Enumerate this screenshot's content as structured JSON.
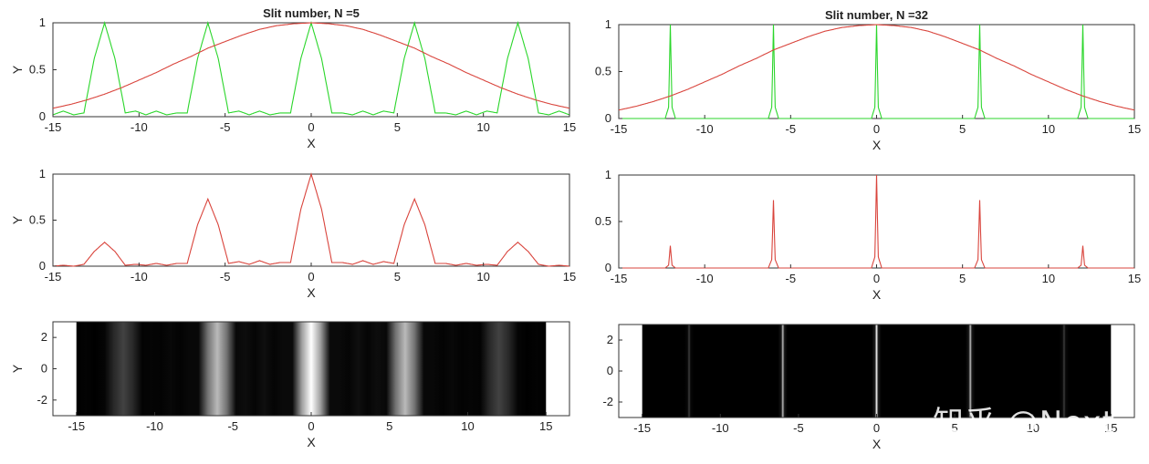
{
  "chart_data": [
    {
      "type": "line",
      "title": "Slit number, N =5",
      "xlabel": "X",
      "ylabel": "Y",
      "xlim": [
        -15,
        15
      ],
      "ylim": [
        0,
        1
      ],
      "xticks": [
        "-15",
        "-10",
        "-5",
        "0",
        "5",
        "10",
        "15"
      ],
      "yticks": [
        "0",
        "0.5",
        "1"
      ],
      "grid": false,
      "series": [
        {
          "color": "#2bd62b",
          "x": [
            -15,
            -14.4,
            -13.8,
            -13.2,
            -12.6,
            -12.0,
            -11.4,
            -10.8,
            -10.2,
            -9.6,
            -9.0,
            -8.4,
            -7.8,
            -7.2,
            -6.6,
            -6.0,
            -5.4,
            -4.8,
            -4.2,
            -3.6,
            -3.0,
            -2.4,
            -1.8,
            -1.2,
            -0.6,
            0.0,
            0.6,
            1.2,
            1.8,
            2.4,
            3.0,
            3.6,
            4.2,
            4.8,
            5.4,
            6.0,
            6.6,
            7.2,
            7.8,
            8.4,
            9.0,
            9.6,
            10.2,
            10.8,
            11.4,
            12.0,
            12.6,
            13.2,
            13.8,
            14.4,
            15
          ],
          "y": [
            0.02,
            0.06,
            0.02,
            0.04,
            0.62,
            1.0,
            0.62,
            0.04,
            0.06,
            0.02,
            0.06,
            0.02,
            0.04,
            0.04,
            0.62,
            1.0,
            0.62,
            0.04,
            0.06,
            0.02,
            0.06,
            0.02,
            0.04,
            0.04,
            0.62,
            1.0,
            0.62,
            0.04,
            0.04,
            0.02,
            0.06,
            0.02,
            0.06,
            0.04,
            0.62,
            1.0,
            0.62,
            0.04,
            0.04,
            0.02,
            0.06,
            0.02,
            0.06,
            0.04,
            0.62,
            1.0,
            0.62,
            0.04,
            0.02,
            0.06,
            0.02
          ]
        },
        {
          "color": "#d9443c",
          "x": [
            -15,
            -14,
            -13,
            -12,
            -11,
            -10,
            -9,
            -8,
            -7,
            -6,
            -5,
            -4,
            -3,
            -2,
            -1,
            0,
            1,
            2,
            3,
            4,
            5,
            6,
            7,
            8,
            9,
            10,
            11,
            12,
            13,
            14,
            15
          ],
          "y": [
            0.09,
            0.13,
            0.18,
            0.24,
            0.31,
            0.39,
            0.47,
            0.56,
            0.64,
            0.73,
            0.8,
            0.87,
            0.93,
            0.97,
            0.99,
            1.0,
            0.99,
            0.97,
            0.93,
            0.87,
            0.8,
            0.73,
            0.64,
            0.56,
            0.47,
            0.39,
            0.31,
            0.24,
            0.18,
            0.13,
            0.09
          ]
        }
      ]
    },
    {
      "type": "line",
      "title": "Slit number, N =32",
      "xlabel": "X",
      "ylabel": "",
      "xlim": [
        -15,
        15
      ],
      "ylim": [
        0,
        1
      ],
      "xticks": [
        "-15",
        "-10",
        "-5",
        "0",
        "5",
        "10",
        "15"
      ],
      "yticks": [
        "0",
        "0.5",
        "1"
      ],
      "grid": false,
      "series": [
        {
          "color": "#2bd62b",
          "x": [
            -15,
            -12.3,
            -12.1,
            -12.0,
            -11.9,
            -11.7,
            -6.3,
            -6.1,
            -6.0,
            -5.9,
            -5.7,
            -0.3,
            -0.1,
            0.0,
            0.1,
            0.3,
            5.7,
            5.9,
            6.0,
            6.1,
            6.3,
            11.7,
            11.9,
            12.0,
            12.1,
            12.3,
            15
          ],
          "y": [
            0.0,
            0.0,
            0.12,
            1.0,
            0.12,
            0.0,
            0.0,
            0.12,
            1.0,
            0.12,
            0.0,
            0.0,
            0.12,
            1.0,
            0.12,
            0.0,
            0.0,
            0.12,
            1.0,
            0.12,
            0.0,
            0.0,
            0.12,
            1.0,
            0.12,
            0.0,
            0.0
          ]
        },
        {
          "color": "#d9443c",
          "x": [
            -15,
            -14,
            -13,
            -12,
            -11,
            -10,
            -9,
            -8,
            -7,
            -6,
            -5,
            -4,
            -3,
            -2,
            -1,
            0,
            1,
            2,
            3,
            4,
            5,
            6,
            7,
            8,
            9,
            10,
            11,
            12,
            13,
            14,
            15
          ],
          "y": [
            0.09,
            0.13,
            0.18,
            0.24,
            0.31,
            0.39,
            0.47,
            0.56,
            0.64,
            0.73,
            0.8,
            0.87,
            0.93,
            0.97,
            0.99,
            1.0,
            0.99,
            0.97,
            0.93,
            0.87,
            0.8,
            0.73,
            0.64,
            0.56,
            0.47,
            0.39,
            0.31,
            0.24,
            0.18,
            0.13,
            0.09
          ]
        }
      ]
    },
    {
      "type": "line",
      "title": "",
      "xlabel": "X",
      "ylabel": "Y",
      "xlim": [
        -15,
        15
      ],
      "ylim": [
        0,
        1
      ],
      "xticks": [
        "-15",
        "-10",
        "-5",
        "0",
        "5",
        "10",
        "15"
      ],
      "yticks": [
        "0",
        "0.5",
        "1"
      ],
      "grid": false,
      "series": [
        {
          "color": "#d9443c",
          "x": [
            -15,
            -14.4,
            -13.8,
            -13.2,
            -12.6,
            -12.0,
            -11.4,
            -10.8,
            -10.2,
            -9.6,
            -9.0,
            -8.4,
            -7.8,
            -7.2,
            -6.6,
            -6.0,
            -5.4,
            -4.8,
            -4.2,
            -3.6,
            -3.0,
            -2.4,
            -1.8,
            -1.2,
            -0.6,
            0.0,
            0.6,
            1.2,
            1.8,
            2.4,
            3.0,
            3.6,
            4.2,
            4.8,
            5.4,
            6.0,
            6.6,
            7.2,
            7.8,
            8.4,
            9.0,
            9.6,
            10.2,
            10.8,
            11.4,
            12.0,
            12.6,
            13.2,
            13.8,
            14.4,
            15
          ],
          "y": [
            0.0,
            0.01,
            0.0,
            0.02,
            0.16,
            0.26,
            0.16,
            0.01,
            0.02,
            0.01,
            0.03,
            0.01,
            0.03,
            0.03,
            0.45,
            0.73,
            0.45,
            0.03,
            0.05,
            0.02,
            0.06,
            0.02,
            0.04,
            0.04,
            0.62,
            1.0,
            0.62,
            0.04,
            0.04,
            0.02,
            0.06,
            0.02,
            0.05,
            0.03,
            0.45,
            0.73,
            0.45,
            0.03,
            0.03,
            0.01,
            0.03,
            0.01,
            0.02,
            0.01,
            0.16,
            0.26,
            0.16,
            0.02,
            0.0,
            0.01,
            0.0
          ]
        }
      ]
    },
    {
      "type": "line",
      "title": "",
      "xlabel": "X",
      "ylabel": "",
      "xlim": [
        -15,
        15
      ],
      "ylim": [
        0,
        1
      ],
      "xticks": [
        "-15",
        "-10",
        "-5",
        "0",
        "5",
        "10",
        "15"
      ],
      "yticks": [
        "0",
        "0.5",
        "1"
      ],
      "grid": false,
      "series": [
        {
          "color": "#d9443c",
          "x": [
            -15,
            -12.3,
            -12.1,
            -12.0,
            -11.9,
            -11.7,
            -6.3,
            -6.1,
            -6.0,
            -5.9,
            -5.7,
            -0.3,
            -0.1,
            0.0,
            0.1,
            0.3,
            5.7,
            5.9,
            6.0,
            6.1,
            6.3,
            11.7,
            11.9,
            12.0,
            12.1,
            12.3,
            15
          ],
          "y": [
            0.0,
            0.0,
            0.03,
            0.24,
            0.03,
            0.0,
            0.0,
            0.09,
            0.73,
            0.09,
            0.0,
            0.0,
            0.12,
            1.0,
            0.12,
            0.0,
            0.0,
            0.09,
            0.73,
            0.09,
            0.0,
            0.0,
            0.03,
            0.24,
            0.03,
            0.0,
            0.0
          ]
        }
      ]
    },
    {
      "type": "heatmap",
      "title": "",
      "xlabel": "X",
      "ylabel": "Y",
      "xlim": [
        -16.5,
        16.5
      ],
      "ylim": [
        -3,
        3
      ],
      "xticks": [
        "-15",
        "-10",
        "-5",
        "0",
        "5",
        "10",
        "15"
      ],
      "yticks": [
        "-2",
        "0",
        "2"
      ],
      "image_extent_x": [
        -15,
        15
      ],
      "colormap": "gray",
      "intensity": {
        "x": [
          -15,
          -14.4,
          -13.8,
          -13.2,
          -12.6,
          -12.0,
          -11.4,
          -10.8,
          -10.2,
          -9.6,
          -9.0,
          -8.4,
          -7.8,
          -7.2,
          -6.6,
          -6.0,
          -5.4,
          -4.8,
          -4.2,
          -3.6,
          -3.0,
          -2.4,
          -1.8,
          -1.2,
          -0.6,
          0.0,
          0.6,
          1.2,
          1.8,
          2.4,
          3.0,
          3.6,
          4.2,
          4.8,
          5.4,
          6.0,
          6.6,
          7.2,
          7.8,
          8.4,
          9.0,
          9.6,
          10.2,
          10.8,
          11.4,
          12.0,
          12.6,
          13.2,
          13.8,
          14.4,
          15
        ],
        "values": [
          0.0,
          0.01,
          0.0,
          0.02,
          0.16,
          0.26,
          0.16,
          0.01,
          0.02,
          0.01,
          0.03,
          0.01,
          0.03,
          0.03,
          0.45,
          0.73,
          0.45,
          0.03,
          0.05,
          0.02,
          0.06,
          0.02,
          0.04,
          0.04,
          0.62,
          1.0,
          0.62,
          0.04,
          0.04,
          0.02,
          0.06,
          0.02,
          0.05,
          0.03,
          0.45,
          0.73,
          0.45,
          0.03,
          0.03,
          0.01,
          0.03,
          0.01,
          0.02,
          0.01,
          0.16,
          0.26,
          0.16,
          0.02,
          0.0,
          0.01,
          0.0
        ]
      }
    },
    {
      "type": "heatmap",
      "title": "",
      "xlabel": "X",
      "ylabel": "",
      "xlim": [
        -16.5,
        16.5
      ],
      "ylim": [
        -3,
        3
      ],
      "xticks": [
        "-15",
        "-10",
        "-5",
        "0",
        "5",
        "10",
        "15"
      ],
      "yticks": [
        "-2",
        "0",
        "2"
      ],
      "image_extent_x": [
        -15,
        15
      ],
      "colormap": "gray",
      "intensity": {
        "x": [
          -15,
          -12.3,
          -12.1,
          -12.0,
          -11.9,
          -11.7,
          -6.3,
          -6.1,
          -6.0,
          -5.9,
          -5.7,
          -0.3,
          -0.1,
          0.0,
          0.1,
          0.3,
          5.7,
          5.9,
          6.0,
          6.1,
          6.3,
          11.7,
          11.9,
          12.0,
          12.1,
          12.3,
          15
        ],
        "values": [
          0.0,
          0.0,
          0.03,
          0.24,
          0.03,
          0.0,
          0.0,
          0.09,
          0.73,
          0.09,
          0.0,
          0.0,
          0.12,
          1.0,
          0.12,
          0.0,
          0.0,
          0.09,
          0.73,
          0.09,
          0.0,
          0.0,
          0.03,
          0.24,
          0.03,
          0.0,
          0.0
        ]
      }
    }
  ],
  "watermark": {
    "text": "知乎 @Next"
  }
}
